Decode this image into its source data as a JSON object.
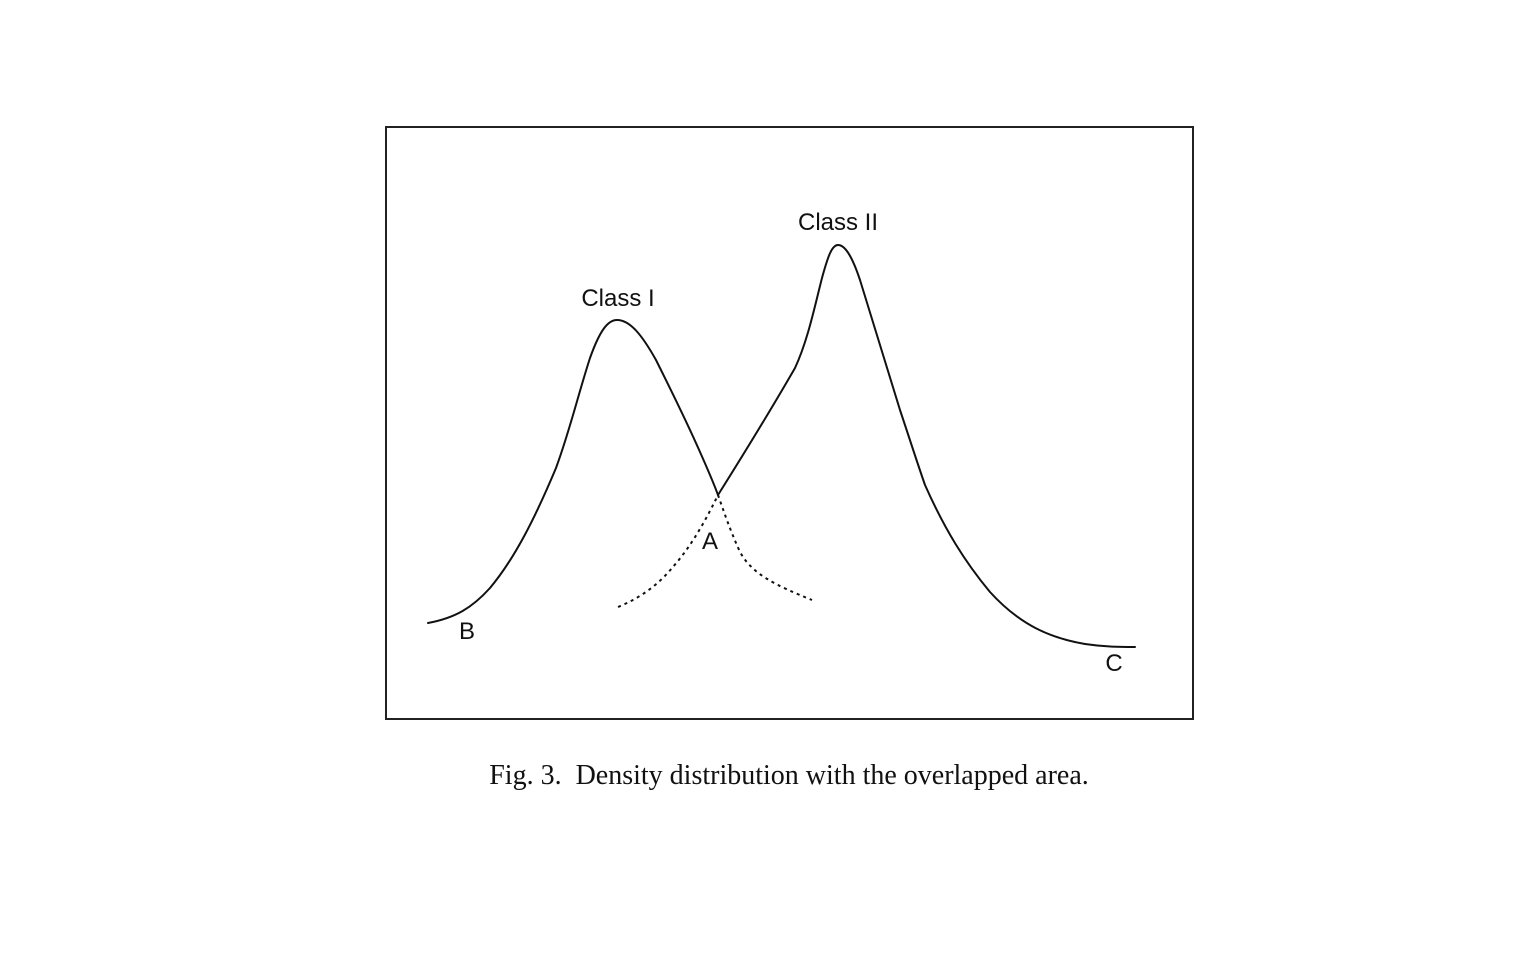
{
  "labels": {
    "class_one": "Class I",
    "class_two": "Class II",
    "point_a": "A",
    "point_b": "B",
    "point_c": "C"
  },
  "caption": "Fig. 3.  Density distribution with the overlapped area."
}
